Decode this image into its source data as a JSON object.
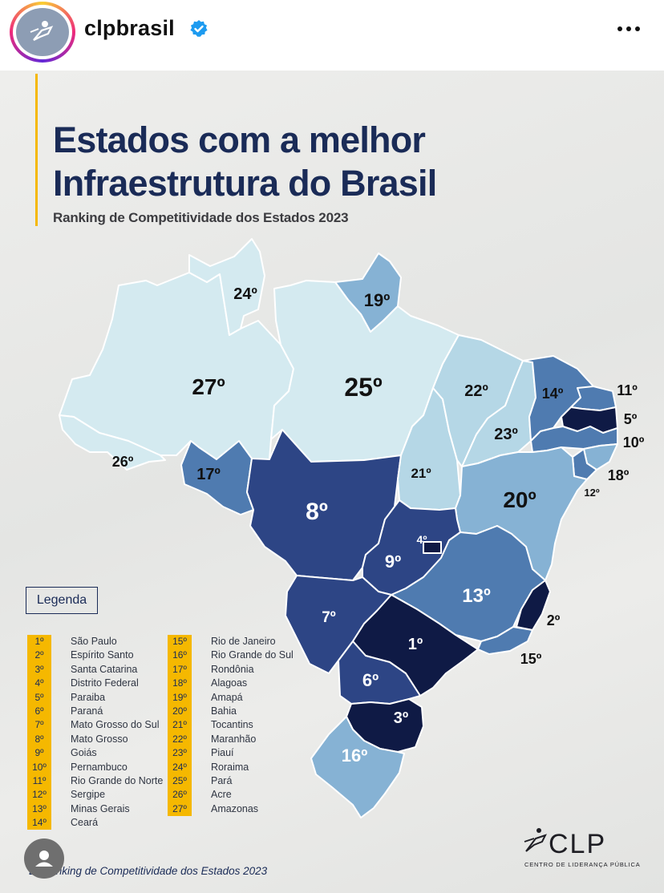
{
  "header": {
    "username": "clpbrasil",
    "verified_icon": "verified-badge-icon",
    "more_icon": "more-options-icon"
  },
  "poster": {
    "title_line1": "Estados com a melhor",
    "title_line2": "Infraestrutura do Brasil",
    "subtitle": "Ranking de Competitividade dos Estados 2023",
    "legend_title": "Legenda",
    "source": "E: Ranking de Competitividade dos Estados 2023",
    "logo_text": "CLP",
    "logo_subtitle": "CENTRO DE LIDERANÇA PÚBLICA"
  },
  "colors": {
    "rank_1_5": "#0f1a45",
    "rank_6_9": "#2d4585",
    "rank_10_15": "#4f7bb0",
    "rank_16_20": "#86b2d4",
    "rank_21_23": "#b5d7e6",
    "rank_24_27": "#d4eaf0",
    "title": "#1a2b57",
    "accent": "#f5b800"
  },
  "map": {
    "labels": {
      "AM": "27º",
      "RR": "24º",
      "AP": "19º",
      "PA": "25º",
      "AC": "26º",
      "RO": "17º",
      "MT": "8º",
      "TO": "21º",
      "MA": "22º",
      "PI": "23º",
      "CE": "14º",
      "RN": "11º",
      "PB": "5º",
      "PE": "10º",
      "AL": "18º",
      "SE": "12º",
      "BA": "20º",
      "DF": "4º",
      "GO": "9º",
      "MG": "13º",
      "ES": "2º",
      "RJ": "15º",
      "MS": "7º",
      "SP": "1º",
      "PR": "6º",
      "SC": "3º",
      "RS": "16º"
    }
  },
  "legend": {
    "left": [
      {
        "rank": "1º",
        "state": "São Paulo"
      },
      {
        "rank": "2º",
        "state": "Espírito Santo"
      },
      {
        "rank": "3º",
        "state": "Santa Catarina"
      },
      {
        "rank": "4º",
        "state": "Distrito Federal"
      },
      {
        "rank": "5º",
        "state": "Paraiba"
      },
      {
        "rank": "6º",
        "state": "Paraná"
      },
      {
        "rank": "7º",
        "state": "Mato Grosso do Sul"
      },
      {
        "rank": "8º",
        "state": "Mato Grosso"
      },
      {
        "rank": "9º",
        "state": "Goiás"
      },
      {
        "rank": "10º",
        "state": "Pernambuco"
      },
      {
        "rank": "11º",
        "state": "Rio Grande do Norte"
      },
      {
        "rank": "12º",
        "state": "Sergipe"
      },
      {
        "rank": "13º",
        "state": "Minas Gerais"
      },
      {
        "rank": "14º",
        "state": "Ceará"
      }
    ],
    "right": [
      {
        "rank": "15º",
        "state": "Rio de Janeiro"
      },
      {
        "rank": "16º",
        "state": "Rio Grande do Sul"
      },
      {
        "rank": "17º",
        "state": "Rondônia"
      },
      {
        "rank": "18º",
        "state": "Alagoas"
      },
      {
        "rank": "19º",
        "state": "Amapá"
      },
      {
        "rank": "20º",
        "state": "Bahia"
      },
      {
        "rank": "21º",
        "state": "Tocantins"
      },
      {
        "rank": "22º",
        "state": "Maranhão"
      },
      {
        "rank": "23º",
        "state": "Piauí"
      },
      {
        "rank": "24º",
        "state": "Roraima"
      },
      {
        "rank": "25º",
        "state": "Pará"
      },
      {
        "rank": "26º",
        "state": "Acre"
      },
      {
        "rank": "27º",
        "state": "Amazonas"
      }
    ]
  }
}
